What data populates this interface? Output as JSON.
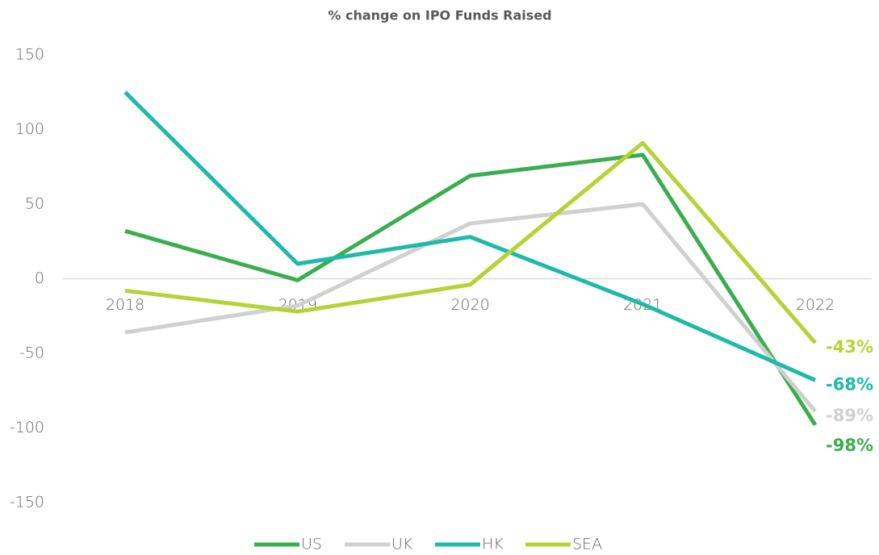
{
  "chart_data": {
    "type": "line",
    "title": "% change on IPO Funds Raised",
    "categories": [
      "2018",
      "2019",
      "2020",
      "2021",
      "2022"
    ],
    "series": [
      {
        "name": "US",
        "color": "#3aae4e",
        "values": [
          32,
          -1,
          69,
          83,
          -98
        ],
        "value_labels": [
          null,
          null,
          null,
          null,
          "-98%"
        ]
      },
      {
        "name": "UK",
        "color": "#d0d0ce",
        "values": [
          -36,
          -18,
          37,
          50,
          -89
        ],
        "value_labels": [
          null,
          null,
          null,
          null,
          "-89%"
        ]
      },
      {
        "name": "HK",
        "color": "#1dbaa7",
        "values": [
          125,
          10,
          28,
          -17,
          -68
        ],
        "value_labels": [
          null,
          null,
          null,
          null,
          "-68%"
        ]
      },
      {
        "name": "SEA",
        "color": "#b5d334",
        "values": [
          -8,
          -22,
          -4,
          91,
          -43
        ],
        "value_labels": [
          null,
          null,
          null,
          null,
          "-43%"
        ]
      }
    ],
    "ylim": [
      -150,
      150
    ],
    "yticks": [
      -150,
      -100,
      -50,
      0,
      50,
      100,
      150
    ],
    "legend": "bottom"
  }
}
